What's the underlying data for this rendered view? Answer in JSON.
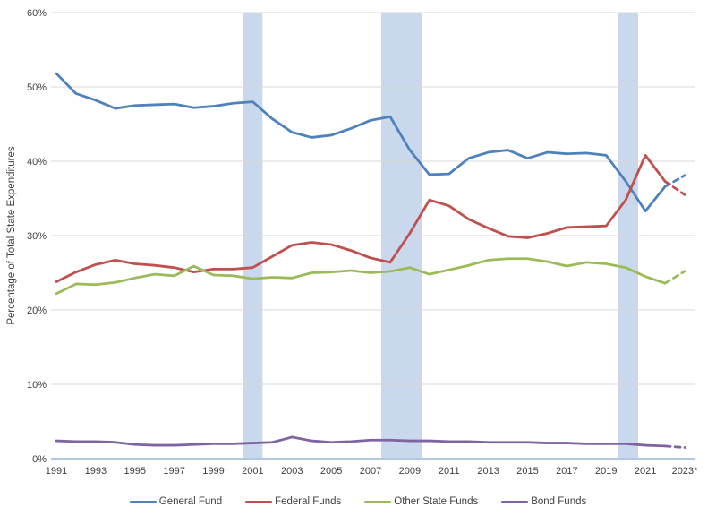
{
  "chart_data": {
    "type": "line",
    "title": "",
    "xlabel": "",
    "ylabel": "Percentage of Total State Expenditures",
    "ylim": [
      0,
      60
    ],
    "grid": true,
    "legend_position": "bottom",
    "note": "final segment (2022 to 2023*) drawn dashed = estimated",
    "x": [
      1991,
      1992,
      1993,
      1994,
      1995,
      1996,
      1997,
      1998,
      1999,
      2000,
      2001,
      2002,
      2003,
      2004,
      2005,
      2006,
      2007,
      2008,
      2009,
      2010,
      2011,
      2012,
      2013,
      2014,
      2015,
      2016,
      2017,
      2018,
      2019,
      2020,
      2021,
      2022,
      2023
    ],
    "x_tick_labels": [
      "1991",
      "1993",
      "1995",
      "1997",
      "1999",
      "2001",
      "2003",
      "2005",
      "2007",
      "2009",
      "2011",
      "2013",
      "2015",
      "2017",
      "2019",
      "2021",
      "2023*"
    ],
    "y_ticks": [
      0,
      10,
      20,
      30,
      40,
      50,
      60
    ],
    "y_tick_labels": [
      "0%",
      "10%",
      "20%",
      "30%",
      "40%",
      "50%",
      "60%"
    ],
    "series": [
      {
        "name": "General Fund",
        "color": "#4F81BD",
        "values": [
          51.8,
          49.1,
          48.2,
          47.1,
          47.5,
          47.6,
          47.7,
          47.2,
          47.4,
          47.8,
          48.0,
          45.7,
          43.9,
          43.2,
          43.5,
          44.4,
          45.5,
          46.0,
          41.5,
          38.2,
          38.3,
          40.4,
          41.2,
          41.5,
          40.4,
          41.2,
          41.0,
          41.1,
          40.8,
          37.3,
          33.3,
          36.6,
          38.1
        ]
      },
      {
        "name": "Federal Funds",
        "color": "#C0504D",
        "values": [
          23.8,
          25.1,
          26.1,
          26.7,
          26.2,
          26.0,
          25.7,
          25.1,
          25.5,
          25.5,
          25.7,
          27.2,
          28.7,
          29.1,
          28.8,
          28.0,
          27.0,
          26.4,
          30.3,
          34.8,
          34.0,
          32.2,
          31.0,
          29.9,
          29.7,
          30.3,
          31.1,
          31.2,
          31.3,
          34.8,
          40.8,
          37.3,
          35.5
        ]
      },
      {
        "name": "Other State Funds",
        "color": "#9BBB59",
        "values": [
          22.2,
          23.5,
          23.4,
          23.7,
          24.3,
          24.8,
          24.6,
          25.9,
          24.7,
          24.6,
          24.2,
          24.4,
          24.3,
          25.0,
          25.1,
          25.3,
          25.0,
          25.2,
          25.7,
          24.8,
          25.4,
          26.0,
          26.7,
          26.9,
          26.9,
          26.5,
          25.9,
          26.4,
          26.2,
          25.7,
          24.5,
          23.6,
          25.2
        ]
      },
      {
        "name": "Bond Funds",
        "color": "#8064A2",
        "values": [
          2.4,
          2.3,
          2.3,
          2.2,
          1.9,
          1.8,
          1.8,
          1.9,
          2.0,
          2.0,
          2.1,
          2.2,
          2.9,
          2.4,
          2.2,
          2.3,
          2.5,
          2.5,
          2.4,
          2.4,
          2.3,
          2.3,
          2.2,
          2.2,
          2.2,
          2.1,
          2.1,
          2.0,
          2.0,
          2.0,
          1.8,
          1.7,
          1.5
        ]
      }
    ],
    "recession_bands": [
      {
        "x_start": 2000.5,
        "x_end": 2001.5
      },
      {
        "x_start": 2007.55,
        "x_end": 2009.6
      },
      {
        "x_start": 2019.58,
        "x_end": 2020.63
      }
    ],
    "band_color": "#C9D8EC",
    "gridline_color": "#D9D9D9",
    "baseline_color": "#AEC8E6"
  }
}
